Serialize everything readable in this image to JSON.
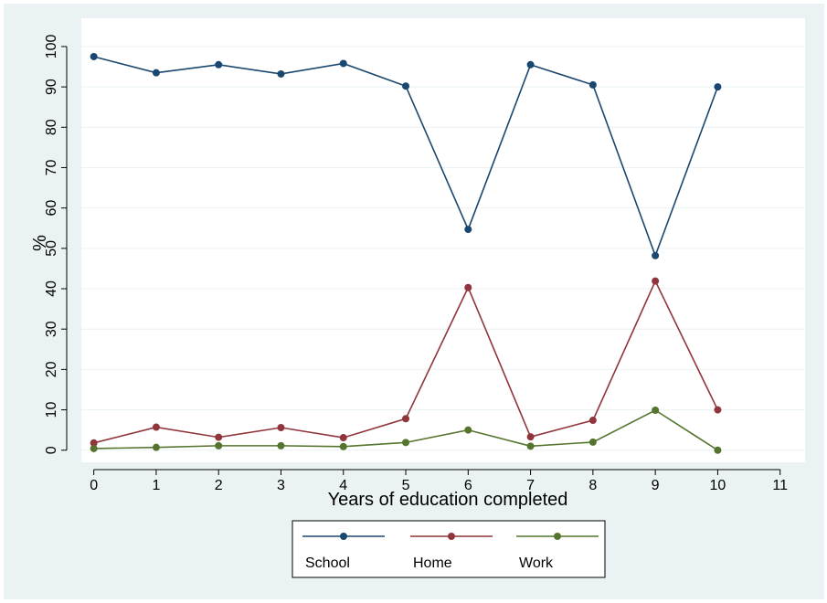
{
  "chart_data": {
    "type": "line",
    "xlabel": "Years of education completed",
    "ylabel": "%",
    "x": [
      0,
      1,
      2,
      3,
      4,
      5,
      6,
      7,
      8,
      9,
      10
    ],
    "xticks": [
      0,
      1,
      2,
      3,
      4,
      5,
      6,
      7,
      8,
      9,
      10,
      11
    ],
    "yticks": [
      0,
      10,
      20,
      30,
      40,
      50,
      60,
      70,
      80,
      90,
      100
    ],
    "xlim": [
      -0.2,
      11.4
    ],
    "ylim": [
      -3,
      107
    ],
    "grid": true,
    "legend_position": "bottom",
    "series": [
      {
        "name": "School",
        "color": "#1a476f",
        "values": [
          97.5,
          93.5,
          95.5,
          93.2,
          95.8,
          90.2,
          54.7,
          95.5,
          90.5,
          48.2,
          90.0
        ]
      },
      {
        "name": "Home",
        "color": "#90353b",
        "values": [
          1.8,
          5.7,
          3.2,
          5.6,
          3.1,
          7.8,
          40.3,
          3.3,
          7.4,
          41.9,
          10.0
        ]
      },
      {
        "name": "Work",
        "color": "#55752f",
        "values": [
          0.4,
          0.7,
          1.1,
          1.1,
          0.9,
          1.9,
          5.0,
          1.0,
          2.0,
          9.9,
          0.0
        ]
      }
    ]
  }
}
